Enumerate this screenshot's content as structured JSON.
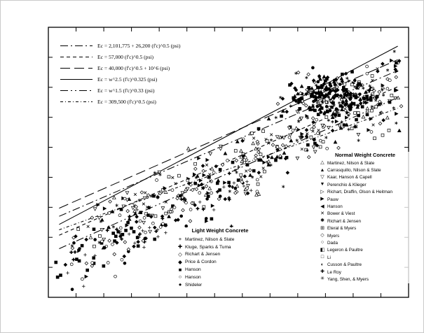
{
  "figure": {
    "background": "#ffffff",
    "ink_color": "#000000"
  },
  "chart_data": {
    "type": "scatter",
    "title": "",
    "xlabel": "",
    "ylabel": "",
    "axes": {
      "x_range": [
        0,
        1
      ],
      "y_range": [
        0,
        1
      ],
      "x_major_ticks": 13,
      "y_major_ticks": 9,
      "tick_labels_visible": false,
      "grid": false
    },
    "equation_legend": {
      "items": [
        {
          "label": "Ec = 2,101,775 + 26,200 (f'c)^0.5   (psi)",
          "line_style": "dash-dot"
        },
        {
          "label": "Ec = 57,000 (f'c)^0.5   (psi)",
          "line_style": "dashed"
        },
        {
          "label": "Ec = 40,000 (f'c)^0.5 + 10^6   (psi)",
          "line_style": "long-dash"
        },
        {
          "label": "Ec = w^2.5 (f'c)^0.325   (psi)",
          "line_style": "solid"
        },
        {
          "label": "Ec = w^1.5 (f'c)^0.33   (psi)",
          "line_style": "dash-dot-dot"
        },
        {
          "label": "Ec = 309,500 (f'c)^0.5   (psi)",
          "line_style": "dense-dash-dot"
        }
      ]
    },
    "trend_lines": [
      {
        "style": "dash-dot",
        "x1": 0.03,
        "y1": 0.3,
        "x2": 0.97,
        "y2": 0.84
      },
      {
        "style": "dashed",
        "x1": 0.03,
        "y1": 0.23,
        "x2": 0.97,
        "y2": 0.78
      },
      {
        "style": "long-dash",
        "x1": 0.03,
        "y1": 0.33,
        "x2": 0.97,
        "y2": 0.88
      },
      {
        "style": "solid",
        "x1": 0.03,
        "y1": 0.27,
        "x2": 0.97,
        "y2": 0.93
      },
      {
        "style": "dash-dot-dot",
        "x1": 0.03,
        "y1": 0.18,
        "x2": 0.97,
        "y2": 0.74
      },
      {
        "style": "dense-dash-dot",
        "x1": 0.03,
        "y1": 0.25,
        "x2": 0.97,
        "y2": 0.7
      }
    ],
    "normal_weight_legend": {
      "title": "Normal Weight Concrete",
      "entries": [
        {
          "marker": "triangle-up-open",
          "label": "Martinez, Nilson & Slate"
        },
        {
          "marker": "triangle-up-filled",
          "label": "Carrasquillo, Nilson & Slate"
        },
        {
          "marker": "triangle-down-open",
          "label": "Kaar, Hanson & Capell"
        },
        {
          "marker": "triangle-down-filled",
          "label": "Perenchio & Klieger"
        },
        {
          "marker": "triangle-right-open",
          "label": "Richart, Draffin, Olson & Heitman"
        },
        {
          "marker": "triangle-right-filled",
          "label": "Pauw"
        },
        {
          "marker": "triangle-left-filled",
          "label": "Hanson"
        },
        {
          "marker": "x",
          "label": "Bower & Viest"
        },
        {
          "marker": "star",
          "label": "Richart & Jensen"
        },
        {
          "marker": "square-plus",
          "label": "Eteral & Myers"
        },
        {
          "marker": "diamond-open",
          "label": "Myers"
        },
        {
          "marker": "circle-open",
          "label": "Dada"
        },
        {
          "marker": "square-half",
          "label": "Legeron & Paultre"
        },
        {
          "marker": "square-open",
          "label": "Li"
        },
        {
          "marker": "circle-half",
          "label": "Cusson & Paultre"
        },
        {
          "marker": "cross",
          "label": "Le Roy"
        },
        {
          "marker": "star-open",
          "label": "Yang, Shen, & Myers"
        }
      ]
    },
    "light_weight_legend": {
      "title": "Light Weight Concrete",
      "entries": [
        {
          "marker": "plus-thin",
          "label": "Martinez, Nilson & Slate"
        },
        {
          "marker": "plus-bold",
          "label": "Kluge, Sparks & Tuma"
        },
        {
          "marker": "diamond-open",
          "label": "Richart & Jensen"
        },
        {
          "marker": "diamond-filled",
          "label": "Price & Cordon"
        },
        {
          "marker": "square-filled",
          "label": "Hanson"
        },
        {
          "marker": "circle-open",
          "label": "Hanson"
        },
        {
          "marker": "circle-filled",
          "label": "Shideler"
        }
      ]
    },
    "scatter_clouds": [
      {
        "name": "normal-weight-band",
        "count": 430,
        "seed": 7,
        "x_min": 0.05,
        "x_max": 0.98,
        "x_skew": 0.75,
        "trend_intercept": 0.17,
        "trend_slope": 0.62,
        "y_noise": 0.13,
        "markers": [
          "triangle-up-open",
          "triangle-up-filled",
          "triangle-down-open",
          "diamond-open",
          "diamond-filled",
          "square-open",
          "square-filled",
          "circle-open",
          "star",
          "x",
          "triangle-right-filled"
        ]
      },
      {
        "name": "dense-cluster",
        "count": 240,
        "seed": 13,
        "cx": 0.79,
        "cy": 0.75,
        "sx": 0.09,
        "sy": 0.06,
        "markers": [
          "diamond-filled",
          "square-filled",
          "triangle-up-filled",
          "circle-filled",
          "diamond-open",
          "star"
        ]
      },
      {
        "name": "light-weight-band",
        "count": 150,
        "seed": 21,
        "x_min": 0.02,
        "x_max": 0.6,
        "x_skew": 1.0,
        "trend_intercept": 0.1,
        "trend_slope": 0.58,
        "y_noise": 0.1,
        "markers": [
          "plus-thin",
          "plus-bold",
          "diamond-open",
          "diamond-filled",
          "square-filled",
          "circle-open",
          "circle-filled"
        ]
      }
    ]
  }
}
